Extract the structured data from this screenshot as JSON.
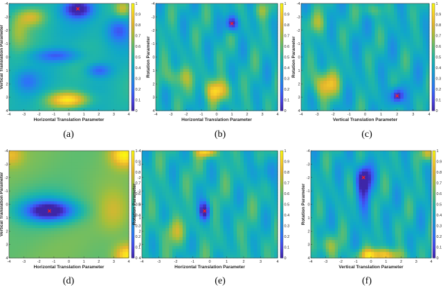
{
  "colormap": [
    "#3e26a8",
    "#4744e9",
    "#2f6ffb",
    "#1e8fe0",
    "#10a8c8",
    "#23b8a2",
    "#5fbd6f",
    "#a7bf39",
    "#e2b52e",
    "#fbd227",
    "#f9fb0e"
  ],
  "marker_color": "#ff1e1e",
  "chart_data": [
    {
      "type": "heatmap",
      "caption": "(a)",
      "xlabel": "Horizontal Translation Parameter",
      "ylabel": "Vertical Translation Parameter",
      "xticks": [
        "-4",
        "-3",
        "-2",
        "-1",
        "0",
        "1",
        "2",
        "3",
        "4"
      ],
      "yticks": [
        "-4",
        "-3",
        "-2",
        "-1",
        "0",
        "1",
        "2",
        "3",
        "4"
      ],
      "colorbar_ticks": [
        "0",
        "0.1",
        "0.2",
        "0.3",
        "0.4",
        "0.5",
        "0.6",
        "0.7",
        "0.8",
        "0.9",
        "1"
      ],
      "xlim": [
        -4,
        4
      ],
      "ylim": [
        -4,
        4
      ],
      "clim": [
        0,
        1
      ],
      "pattern": "wide",
      "base": 0.46,
      "blobs": [
        {
          "x": 0.6,
          "y": -3.6,
          "sx": 1.0,
          "sy": 0.7,
          "a": -0.5
        },
        {
          "x": 3.3,
          "y": -2.0,
          "sx": 0.8,
          "sy": 0.9,
          "a": -0.3
        },
        {
          "x": -0.8,
          "y": -0.1,
          "sx": 1.6,
          "sy": 0.5,
          "a": -0.3
        },
        {
          "x": 2.0,
          "y": 1.0,
          "sx": 0.8,
          "sy": 0.5,
          "a": -0.3
        },
        {
          "x": -2.8,
          "y": 1.8,
          "sx": 0.8,
          "sy": 0.8,
          "a": -0.2
        },
        {
          "x": 0.0,
          "y": 3.2,
          "sx": 1.4,
          "sy": 0.6,
          "a": 0.5
        },
        {
          "x": -3.4,
          "y": -2.0,
          "sx": 0.7,
          "sy": 1.4,
          "a": 0.2
        },
        {
          "x": -2.5,
          "y": -3.0,
          "sx": 0.9,
          "sy": 0.7,
          "a": 0.3
        },
        {
          "x": 3.6,
          "y": -3.6,
          "sx": 0.5,
          "sy": 0.6,
          "a": 0.25
        }
      ],
      "marker": {
        "x": 0.6,
        "y": -3.6
      }
    },
    {
      "type": "heatmap",
      "caption": "(b)",
      "xlabel": "Horizontal Translation Parameter",
      "ylabel": "Rotation Parameter",
      "xticks": [
        "-4",
        "-3",
        "-2",
        "-1",
        "0",
        "1",
        "2",
        "3",
        "4"
      ],
      "yticks": [
        "-4",
        "-3",
        "-2",
        "-1",
        "0",
        "1",
        "2",
        "3",
        "4"
      ],
      "colorbar_ticks": [
        "0",
        "0.1",
        "0.2",
        "0.3",
        "0.4",
        "0.5",
        "0.6",
        "0.7",
        "0.8",
        "0.9",
        "1"
      ],
      "xlim": [
        -4,
        4
      ],
      "ylim": [
        -4,
        4
      ],
      "clim": [
        0,
        1
      ],
      "pattern": "striped",
      "base": 0.45,
      "blobs": [
        {
          "x": 1.0,
          "y": -2.5,
          "sx": 0.4,
          "sy": 0.6,
          "a": -0.5
        },
        {
          "x": 0.0,
          "y": 2.5,
          "sx": 0.8,
          "sy": 0.8,
          "a": 0.45
        },
        {
          "x": -2.5,
          "y": 1.5,
          "sx": 0.9,
          "sy": 0.8,
          "a": 0.25
        },
        {
          "x": 3.0,
          "y": -3.5,
          "sx": 0.6,
          "sy": 0.6,
          "a": 0.15
        }
      ],
      "marker": {
        "x": 1.0,
        "y": -2.5
      }
    },
    {
      "type": "heatmap",
      "caption": "(c)",
      "xlabel": "Vertical Translation Parameter",
      "ylabel": "Rotation Parameter",
      "xticks": [
        "-4",
        "-3",
        "-2",
        "-1",
        "0",
        "1",
        "2",
        "3",
        "4"
      ],
      "yticks": [
        "-4",
        "-3",
        "-2",
        "-1",
        "0",
        "1",
        "2",
        "3",
        "4"
      ],
      "colorbar_ticks": [
        "0",
        "0.1",
        "0.2",
        "0.3",
        "0.4",
        "0.5",
        "0.6",
        "0.7",
        "0.8",
        "0.9",
        "1"
      ],
      "xlim": [
        -4,
        4
      ],
      "ylim": [
        -4,
        4
      ],
      "clim": [
        0,
        1
      ],
      "pattern": "striped",
      "base": 0.43,
      "blobs": [
        {
          "x": 2.0,
          "y": 2.9,
          "sx": 0.4,
          "sy": 0.6,
          "a": -0.5
        },
        {
          "x": -2.5,
          "y": 2.0,
          "sx": 0.8,
          "sy": 1.0,
          "a": 0.45
        },
        {
          "x": -3.0,
          "y": -2.5,
          "sx": 0.7,
          "sy": 0.8,
          "a": 0.2
        },
        {
          "x": 0.5,
          "y": -3.5,
          "sx": 0.8,
          "sy": 0.5,
          "a": 0.15
        }
      ],
      "marker": {
        "x": 2.0,
        "y": 2.9
      }
    },
    {
      "type": "heatmap",
      "caption": "(d)",
      "xlabel": "Horizontal Translation Parameter",
      "ylabel": "Vertical Translation Parameter",
      "xticks": [
        "-4",
        "-3",
        "-2",
        "-1",
        "0",
        "1",
        "2",
        "3",
        "4"
      ],
      "yticks": [
        "-4",
        "-3",
        "-2",
        "-1",
        "0",
        "1",
        "2",
        "3",
        "4"
      ],
      "colorbar_ticks": [
        "0",
        "0.1",
        "0.2",
        "0.3",
        "0.4",
        "0.5",
        "0.6",
        "0.7",
        "0.8",
        "0.9",
        "1"
      ],
      "xlim": [
        -4,
        4
      ],
      "ylim": [
        -4,
        4
      ],
      "clim": [
        0,
        1
      ],
      "pattern": "smooth",
      "base": 0.62,
      "blobs": [
        {
          "x": -1.3,
          "y": 0.5,
          "sx": 1.7,
          "sy": 0.75,
          "a": -0.6
        },
        {
          "x": -1.6,
          "y": 0.2,
          "sx": 2.5,
          "sy": 1.5,
          "a": -0.15
        },
        {
          "x": 3.7,
          "y": -3.7,
          "sx": 0.9,
          "sy": 0.9,
          "a": 0.35
        },
        {
          "x": 3.9,
          "y": 3.8,
          "sx": 0.8,
          "sy": 0.8,
          "a": 0.35
        },
        {
          "x": -3.9,
          "y": -3.7,
          "sx": 0.8,
          "sy": 0.8,
          "a": 0.2
        },
        {
          "x": 3.0,
          "y": 0.5,
          "sx": 1.0,
          "sy": 1.5,
          "a": 0.15
        }
      ],
      "marker": {
        "x": -1.3,
        "y": 0.5
      }
    },
    {
      "type": "heatmap",
      "caption": "(e)",
      "xlabel": "Horizontal Translation Parameter",
      "ylabel": "Rotation Parameter",
      "xticks": [
        "-4",
        "-3",
        "-2",
        "-1",
        "0",
        "1",
        "2",
        "3",
        "4"
      ],
      "yticks": [
        "-4",
        "-3",
        "-2",
        "-1",
        "0",
        "1",
        "2",
        "3",
        "4"
      ],
      "colorbar_ticks": [
        "0",
        "0.1",
        "0.2",
        "0.3",
        "0.4",
        "0.5",
        "0.6",
        "0.7",
        "0.8",
        "0.9",
        "1"
      ],
      "xlim": [
        -4,
        4
      ],
      "ylim": [
        -4,
        4
      ],
      "clim": [
        0,
        1
      ],
      "pattern": "striped",
      "base": 0.47,
      "blobs": [
        {
          "x": -0.3,
          "y": 0.5,
          "sx": 0.35,
          "sy": 0.7,
          "a": -0.5
        },
        {
          "x": -0.2,
          "y": -3.9,
          "sx": 0.6,
          "sy": 0.4,
          "a": 0.45
        },
        {
          "x": -2.2,
          "y": 2.0,
          "sx": 0.8,
          "sy": 0.9,
          "a": 0.2
        },
        {
          "x": 3.2,
          "y": -2.5,
          "sx": 0.7,
          "sy": 1.0,
          "a": -0.15
        }
      ],
      "marker": {
        "x": -0.3,
        "y": 0.5
      }
    },
    {
      "type": "heatmap",
      "caption": "(f)",
      "xlabel": "Vertical Translation Parameter",
      "ylabel": "Rotation Parameter",
      "xticks": [
        "-4",
        "-3",
        "-2",
        "-1",
        "0",
        "1",
        "2",
        "3",
        "4"
      ],
      "yticks": [
        "-4",
        "-3",
        "-2",
        "-1",
        "0",
        "1",
        "2",
        "3",
        "4"
      ],
      "colorbar_ticks": [
        "0",
        "0.1",
        "0.2",
        "0.3",
        "0.4",
        "0.5",
        "0.6",
        "0.7",
        "0.8",
        "0.9",
        "1"
      ],
      "xlim": [
        -4,
        4
      ],
      "ylim": [
        -4,
        4
      ],
      "clim": [
        0,
        1
      ],
      "pattern": "striped",
      "base": 0.44,
      "blobs": [
        {
          "x": -0.5,
          "y": -2.0,
          "sx": 0.5,
          "sy": 1.0,
          "a": -0.5
        },
        {
          "x": -0.4,
          "y": -0.5,
          "sx": 0.5,
          "sy": 1.8,
          "a": -0.2
        },
        {
          "x": 0.5,
          "y": 3.8,
          "sx": 1.4,
          "sy": 0.5,
          "a": 0.5
        },
        {
          "x": -3.0,
          "y": 3.0,
          "sx": 0.9,
          "sy": 0.8,
          "a": 0.2
        },
        {
          "x": 3.8,
          "y": -3.8,
          "sx": 0.5,
          "sy": 0.6,
          "a": 0.3
        }
      ],
      "marker": {
        "x": -0.5,
        "y": -2.0
      }
    }
  ]
}
